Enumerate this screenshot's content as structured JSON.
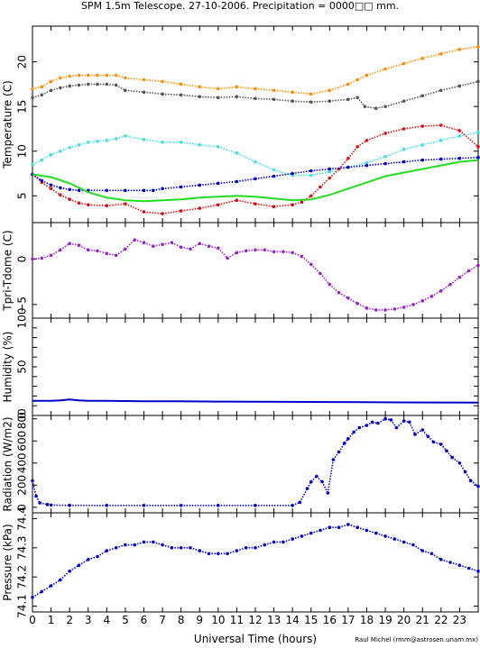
{
  "title": "SPM 1.5m Telescope. 27-10-2006. Precipitation = 0000□□ mm.",
  "credit": "Raul Michel (rmm@astrosen.unam.mx)",
  "colors": {
    "orange": "#ff8c00",
    "dark_gray": "#555555",
    "cyan": "#40e0e0",
    "red": "#dd1111",
    "blue": "#0000cc",
    "green": "#22dd22",
    "purple": "#9922cc"
  },
  "chart_data": {
    "type": "line",
    "x_axis": {
      "label": "Universal Time (hours)",
      "range": [
        0,
        24
      ],
      "ticks": [
        0,
        1,
        2,
        3,
        4,
        5,
        6,
        7,
        8,
        9,
        10,
        11,
        12,
        13,
        14,
        15,
        16,
        17,
        18,
        19,
        20,
        21,
        22,
        23
      ]
    },
    "panels": [
      {
        "key": "temp",
        "ylabel": "Temperature (C)",
        "ylim": [
          2,
          24
        ],
        "yticks": [
          5,
          10,
          15,
          20
        ],
        "series": [
          {
            "color_key": "orange",
            "style": "points",
            "x": [
              0,
              0.5,
              1,
              1.5,
              2,
              2.5,
              3,
              3.5,
              4,
              4.5,
              5,
              6,
              7,
              8,
              9,
              10,
              11,
              12,
              13,
              14,
              15,
              16,
              17,
              17.5,
              18,
              19,
              20,
              21,
              22,
              23,
              24
            ],
            "y": [
              17,
              17.2,
              17.8,
              18.2,
              18.4,
              18.5,
              18.5,
              18.5,
              18.5,
              18.5,
              18.2,
              18,
              17.8,
              17.5,
              17.2,
              17,
              17.2,
              17,
              16.8,
              16.6,
              16.4,
              16.8,
              17.5,
              18,
              18.5,
              19.2,
              19.8,
              20.4,
              20.9,
              21.4,
              21.7
            ]
          },
          {
            "color_key": "dark_gray",
            "style": "points",
            "x": [
              0,
              0.5,
              1,
              1.5,
              2,
              2.5,
              3,
              3.5,
              4,
              4.5,
              5,
              6,
              7,
              8,
              9,
              10,
              11,
              12,
              13,
              14,
              15,
              16,
              17,
              17.5,
              17.9,
              18.5,
              19,
              20,
              21,
              22,
              23,
              24
            ],
            "y": [
              16,
              16.3,
              16.8,
              17.1,
              17.3,
              17.4,
              17.5,
              17.5,
              17.5,
              17.4,
              16.8,
              16.6,
              16.4,
              16.3,
              16.1,
              16,
              16.1,
              15.9,
              15.8,
              15.6,
              15.5,
              15.6,
              15.8,
              16,
              15,
              14.8,
              15,
              15.6,
              16.2,
              16.8,
              17.3,
              17.8
            ]
          },
          {
            "color_key": "cyan",
            "style": "points",
            "x": [
              0,
              0.5,
              1,
              1.5,
              2,
              2.5,
              3,
              3.5,
              4,
              4.5,
              5,
              6,
              7,
              8,
              9,
              10,
              11,
              12,
              13,
              14,
              15,
              16,
              17,
              18,
              19,
              20,
              21,
              22,
              23,
              24
            ],
            "y": [
              8.5,
              9,
              9.6,
              10,
              10.4,
              10.7,
              11,
              11.1,
              11.2,
              11.4,
              11.7,
              11.3,
              11,
              11,
              10.7,
              10.5,
              9.8,
              8.8,
              7.9,
              7.3,
              7.3,
              7.7,
              8.2,
              8.7,
              9.4,
              10.2,
              10.7,
              11.2,
              11.7,
              12.1
            ]
          },
          {
            "color_key": "red",
            "style": "points",
            "x": [
              0,
              0.5,
              1,
              1.5,
              2,
              2.5,
              3,
              4,
              5,
              6,
              7,
              8,
              9,
              10,
              11,
              12,
              13,
              14,
              14.5,
              15,
              15.5,
              16,
              16.5,
              17,
              17.5,
              18,
              19,
              20,
              21,
              22,
              23,
              24
            ],
            "y": [
              7.4,
              6.5,
              5.8,
              5.1,
              4.6,
              4.2,
              4,
              3.9,
              4.1,
              3.2,
              3,
              3.3,
              3.6,
              4,
              4.5,
              4.1,
              3.8,
              4,
              4.3,
              5,
              6,
              7,
              8,
              9.2,
              10.5,
              11.2,
              12,
              12.5,
              12.8,
              12.9,
              12.3,
              10.5
            ]
          },
          {
            "color_key": "blue",
            "style": "points",
            "x": [
              0,
              0.5,
              1,
              1.5,
              2,
              2.5,
              3,
              4,
              5,
              6,
              6.5,
              7,
              8,
              9,
              10,
              11,
              12,
              13,
              14,
              15,
              16,
              17,
              18,
              19,
              20,
              21,
              22,
              23,
              24
            ],
            "y": [
              7.4,
              6.7,
              6.2,
              5.9,
              5.7,
              5.6,
              5.6,
              5.6,
              5.6,
              5.6,
              5.6,
              5.8,
              6,
              6.2,
              6.4,
              6.6,
              6.9,
              7.2,
              7.5,
              7.8,
              8,
              8.2,
              8.4,
              8.6,
              8.8,
              9,
              9.1,
              9.2,
              9.3
            ]
          },
          {
            "color_key": "green",
            "style": "line",
            "x": [
              0,
              1,
              2,
              3,
              4,
              5,
              6,
              7,
              8,
              9,
              10,
              11,
              12,
              13,
              14,
              15,
              16,
              17,
              18,
              19,
              20,
              21,
              22,
              23,
              24
            ],
            "y": [
              7.4,
              7.1,
              6.4,
              5.4,
              4.8,
              4.5,
              4.4,
              4.5,
              4.6,
              4.8,
              4.9,
              5,
              4.9,
              4.7,
              4.5,
              4.6,
              5.1,
              5.8,
              6.5,
              7.2,
              7.6,
              8,
              8.4,
              8.8,
              9
            ]
          }
        ]
      },
      {
        "key": "tdiff",
        "ylabel": "Tpri-Tdome (C)",
        "ylim": [
          -6.5,
          4
        ],
        "yticks": [
          -5,
          0
        ],
        "series": [
          {
            "color_key": "purple",
            "style": "points",
            "x": [
              0,
              0.5,
              1,
              1.5,
              2,
              2.5,
              3,
              3.5,
              4,
              4.5,
              5,
              5.5,
              6,
              6.5,
              7,
              7.5,
              8,
              8.5,
              9,
              9.5,
              10,
              10.5,
              11,
              11.5,
              12,
              12.5,
              13,
              13.5,
              14,
              14.5,
              15,
              15.5,
              16,
              16.5,
              17,
              17.5,
              18,
              18.5,
              19,
              19.5,
              20,
              20.5,
              21,
              21.5,
              22,
              22.5,
              23,
              23.5,
              24
            ],
            "y": [
              0,
              0.1,
              0.4,
              1,
              1.7,
              1.5,
              1,
              0.9,
              0.6,
              0.4,
              1.1,
              2.1,
              1.8,
              1.4,
              1.6,
              1.8,
              1.3,
              1.1,
              1.7,
              1.4,
              1.2,
              0.1,
              0.7,
              0.9,
              1,
              1,
              0.8,
              0.8,
              0.7,
              0.3,
              -0.6,
              -1.6,
              -2.8,
              -3.7,
              -4.3,
              -4.9,
              -5.4,
              -5.6,
              -5.6,
              -5.5,
              -5.3,
              -5,
              -4.6,
              -4.1,
              -3.5,
              -2.8,
              -2,
              -1.3,
              -0.7
            ]
          }
        ]
      },
      {
        "key": "humidity",
        "ylabel": "Humidity (%)",
        "ylim": [
          0,
          100
        ],
        "yticks": [
          0,
          10,
          20,
          30,
          40,
          50,
          60,
          70,
          80,
          90,
          100
        ],
        "ytick_labels": [
          "0",
          "",
          "",
          "",
          "",
          "50",
          "",
          "",
          "",
          "",
          "100"
        ],
        "series": [
          {
            "color_key": "blue",
            "style": "line",
            "x": [
              0,
              1,
              1.5,
              2,
              2.5,
              3,
              4,
              5,
              6,
              8,
              10,
              12,
              14,
              16,
              18,
              20,
              22,
              24
            ],
            "y": [
              15,
              15,
              15.5,
              16.5,
              15.5,
              15,
              15,
              14.8,
              14.6,
              14.5,
              14.3,
              14.2,
              14,
              13.8,
              13.6,
              13.4,
              13.3,
              13.2
            ]
          }
        ]
      },
      {
        "key": "radiation",
        "ylabel": "Radiation (W/m2)",
        "ylim": [
          -50,
          830
        ],
        "yticks": [
          0,
          200,
          400,
          600,
          800
        ],
        "series": [
          {
            "color_key": "blue",
            "style": "points",
            "x": [
              0,
              0.2,
              0.4,
              0.8,
              1,
              2,
              4,
              6,
              8,
              10,
              12,
              14,
              14.4,
              14.8,
              15,
              15.3,
              15.6,
              15.9,
              16.2,
              16.5,
              16.8,
              17,
              17.3,
              17.6,
              18,
              18.3,
              18.6,
              19,
              19.3,
              19.6,
              20,
              20.3,
              20.6,
              21,
              21.3,
              21.6,
              22,
              22.3,
              22.6,
              23,
              23.3,
              23.6,
              24
            ],
            "y": [
              240,
              100,
              40,
              25,
              20,
              18,
              17,
              17,
              17,
              17,
              17,
              17,
              45,
              170,
              230,
              280,
              230,
              130,
              430,
              500,
              580,
              620,
              680,
              720,
              740,
              770,
              760,
              800,
              790,
              720,
              780,
              770,
              660,
              700,
              640,
              590,
              570,
              510,
              450,
              400,
              320,
              240,
              190
            ]
          }
        ]
      },
      {
        "key": "pressure",
        "ylabel": "Pressure (kPa)",
        "ylim": [
          74.08,
          74.42
        ],
        "yticks": [
          74.1,
          74.2,
          74.3,
          74.4
        ],
        "series": [
          {
            "color_key": "blue",
            "style": "points",
            "x": [
              0,
              0.5,
              1,
              1.5,
              2,
              2.5,
              3,
              3.5,
              4,
              4.5,
              5,
              5.5,
              6,
              6.5,
              7,
              7.5,
              8,
              8.5,
              9,
              9.5,
              10,
              10.5,
              11,
              11.5,
              12,
              12.5,
              13,
              13.5,
              14,
              14.5,
              15,
              15.5,
              16,
              16.5,
              17,
              17.5,
              18,
              18.5,
              19,
              19.5,
              20,
              20.5,
              21,
              21.5,
              22,
              22.5,
              23,
              23.5,
              24
            ],
            "y": [
              74.13,
              74.15,
              74.17,
              74.19,
              74.22,
              74.24,
              74.26,
              74.27,
              74.29,
              74.3,
              74.31,
              74.31,
              74.32,
              74.32,
              74.31,
              74.3,
              74.3,
              74.3,
              74.29,
              74.28,
              74.28,
              74.28,
              74.29,
              74.3,
              74.3,
              74.31,
              74.32,
              74.32,
              74.33,
              74.34,
              74.35,
              74.36,
              74.37,
              74.37,
              74.38,
              74.37,
              74.36,
              74.35,
              74.34,
              74.33,
              74.32,
              74.31,
              74.29,
              74.28,
              74.26,
              74.25,
              74.24,
              74.23,
              74.22
            ]
          }
        ]
      }
    ]
  }
}
